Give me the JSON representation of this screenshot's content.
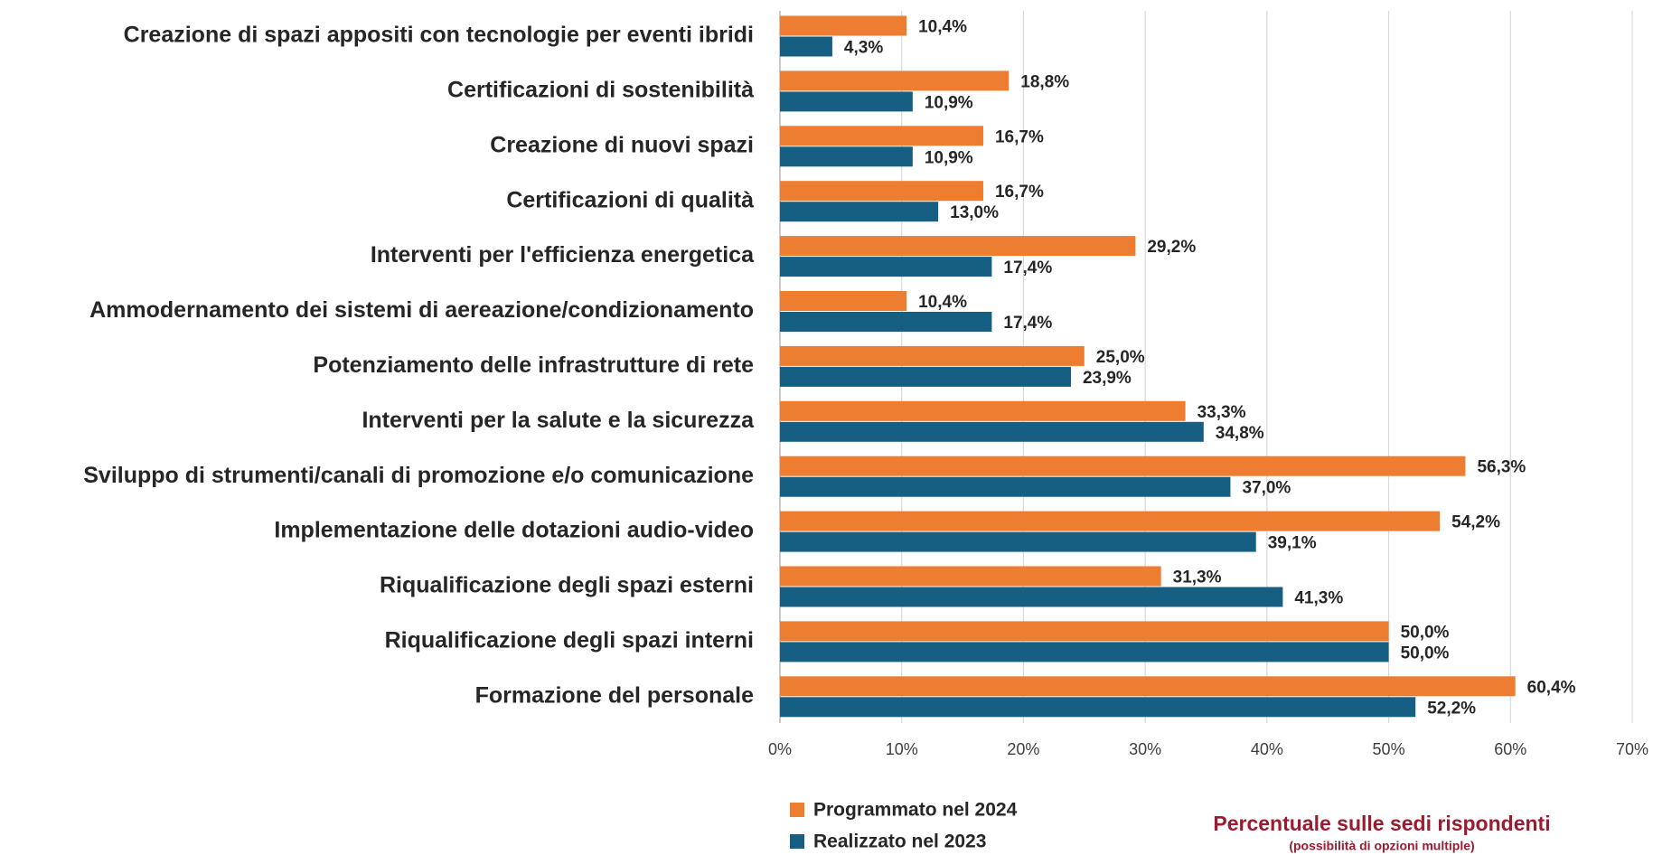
{
  "chart_data": {
    "type": "barh",
    "categories": [
      "Creazione di spazi appositi con tecnologie per eventi ibridi",
      "Certificazioni di sostenibilità",
      "Creazione di nuovi spazi",
      "Certificazioni di qualità",
      "Interventi per l'efficienza energetica",
      "Ammodernamento dei sistemi di aereazione/condizionamento",
      "Potenziamento delle infrastrutture di rete",
      "Interventi per la salute e la sicurezza",
      "Sviluppo di strumenti/canali di promozione e/o comunicazione",
      "Implementazione delle dotazioni audio-video",
      "Riqualificazione degli spazi esterni",
      "Riqualificazione degli spazi interni",
      "Formazione del personale"
    ],
    "series": [
      {
        "name": "Programmato nel 2024",
        "color": "#ed7d31",
        "values": [
          10.4,
          18.8,
          16.7,
          16.7,
          29.2,
          10.4,
          25.0,
          33.3,
          56.3,
          54.2,
          31.3,
          50.0,
          60.4
        ],
        "value_labels": [
          "10,4%",
          "18,8%",
          "16,7%",
          "16,7%",
          "29,2%",
          "10,4%",
          "25,0%",
          "33,3%",
          "56,3%",
          "54,2%",
          "31,3%",
          "50,0%",
          "60,4%"
        ]
      },
      {
        "name": "Realizzato nel 2023",
        "color": "#175f82",
        "values": [
          4.3,
          10.9,
          10.9,
          13.0,
          17.4,
          17.4,
          23.9,
          34.8,
          37.0,
          39.1,
          41.3,
          50.0,
          52.2
        ],
        "value_labels": [
          "4,3%",
          "10,9%",
          "10,9%",
          "13,0%",
          "17,4%",
          "17,4%",
          "23,9%",
          "34,8%",
          "37,0%",
          "39,1%",
          "41,3%",
          "50,0%",
          "52,2%"
        ]
      }
    ],
    "xlim": [
      0,
      70
    ],
    "xticks": [
      {
        "value": 0,
        "label": "0%"
      },
      {
        "value": 10,
        "label": "10%"
      },
      {
        "value": 20,
        "label": "20%"
      },
      {
        "value": 30,
        "label": "30%"
      },
      {
        "value": 40,
        "label": "40%"
      },
      {
        "value": 50,
        "label": "50%"
      },
      {
        "value": 60,
        "label": "60%"
      },
      {
        "value": 70,
        "label": "70%"
      }
    ],
    "grid": true,
    "annotations": [
      "Percentuale sulle sedi rispondenti",
      "(possibilità di opzioni multiple)"
    ]
  }
}
